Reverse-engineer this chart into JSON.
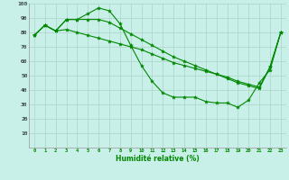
{
  "x": [
    0,
    1,
    2,
    3,
    4,
    5,
    6,
    7,
    8,
    9,
    10,
    11,
    12,
    13,
    14,
    15,
    16,
    17,
    18,
    19,
    20,
    21,
    22,
    23
  ],
  "line1": [
    78,
    85,
    81,
    89,
    89,
    93,
    97,
    95,
    86,
    71,
    57,
    46,
    38,
    35,
    35,
    35,
    32,
    31,
    31,
    28,
    33,
    45,
    54,
    80
  ],
  "line2": [
    78,
    85,
    81,
    89,
    89,
    89,
    89,
    87,
    83,
    79,
    75,
    71,
    67,
    63,
    60,
    57,
    54,
    51,
    48,
    45,
    43,
    41,
    56,
    80
  ],
  "line3": [
    78,
    85,
    81,
    82,
    80,
    78,
    76,
    74,
    72,
    70,
    68,
    65,
    62,
    59,
    57,
    55,
    53,
    51,
    49,
    46,
    44,
    42,
    56,
    80
  ],
  "bg_color": "#c8f0e8",
  "grid_color": "#b0d8cc",
  "line_color": "#008800",
  "xlabel": "Humidité relative (%)",
  "ylim": [
    0,
    100
  ],
  "xlim": [
    -0.5,
    23.5
  ],
  "yticks": [
    10,
    20,
    30,
    40,
    50,
    60,
    70,
    80,
    90,
    100
  ],
  "xticks": [
    0,
    1,
    2,
    3,
    4,
    5,
    6,
    7,
    8,
    9,
    10,
    11,
    12,
    13,
    14,
    15,
    16,
    17,
    18,
    19,
    20,
    21,
    22,
    23
  ]
}
